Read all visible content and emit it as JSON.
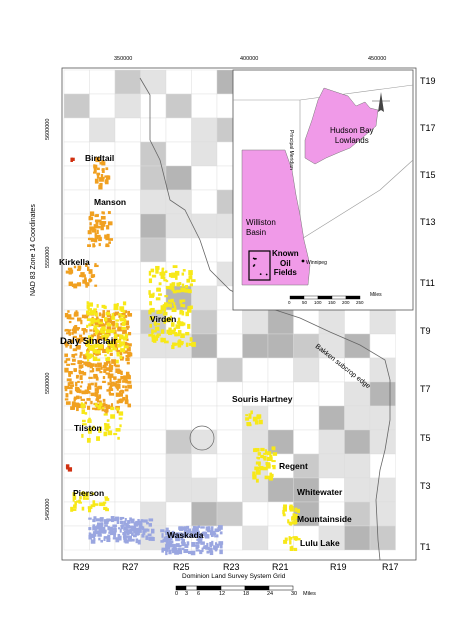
{
  "easting_ticks": [
    "350000",
    "400000",
    "450000"
  ],
  "northing_ticks": [
    "5600000",
    "5550000",
    "5500000",
    "5450000"
  ],
  "coordinate_axis_label": "NAD 83 Zone 14 Coordinates",
  "township_labels": [
    "T19",
    "T17",
    "T15",
    "T13",
    "T11",
    "T9",
    "T7",
    "T5",
    "T3",
    "T1"
  ],
  "range_labels": [
    "R29",
    "R27",
    "R25",
    "R23",
    "R21",
    "R19",
    "R17"
  ],
  "grid_label": "Dominion Land Survey System Grid",
  "scale_bar": {
    "ticks": [
      "0",
      "3",
      "6",
      "12",
      "18",
      "24",
      "30"
    ],
    "unit": "Miles"
  },
  "field_labels": {
    "birdtail": "Birdtail",
    "manson": "Manson",
    "kirkella": "Kirkella",
    "virden": "Virden",
    "daly_sinclair": "Daly Sinclair",
    "souris_hartney": "Souris Hartney",
    "tilston": "Tilston",
    "regent": "Regent",
    "pierson": "Pierson",
    "whitewater": "Whitewater",
    "mountainside": "Mountainside",
    "waskada": "Waskada",
    "lulu_lake": "Lulu Lake"
  },
  "subcrop_label": "Bakken subcrop edge",
  "inset": {
    "hudson_bay": [
      "Hudson Bay",
      "Lowlands"
    ],
    "williston": [
      "Williston",
      "Basin"
    ],
    "known_oil": [
      "Known",
      "Oil",
      "Fields"
    ],
    "winnipeg": "Winnipeg",
    "meridian": "Principal Meridian",
    "scale_ticks": [
      "0",
      "50",
      "100",
      "150",
      "200",
      "250"
    ],
    "scale_unit": "Miles"
  },
  "colors": {
    "background": "#ffffff",
    "grid_light": "#e3e3e3",
    "grid_mid": "#cacaca",
    "grid_dark": "#b5b5b5",
    "orange_fields": "#f0a020",
    "yellow_fields": "#f7e818",
    "blue_fields": "#9aa6e0",
    "basin_pink": "#f09ae8",
    "field_red": "#d03010"
  }
}
